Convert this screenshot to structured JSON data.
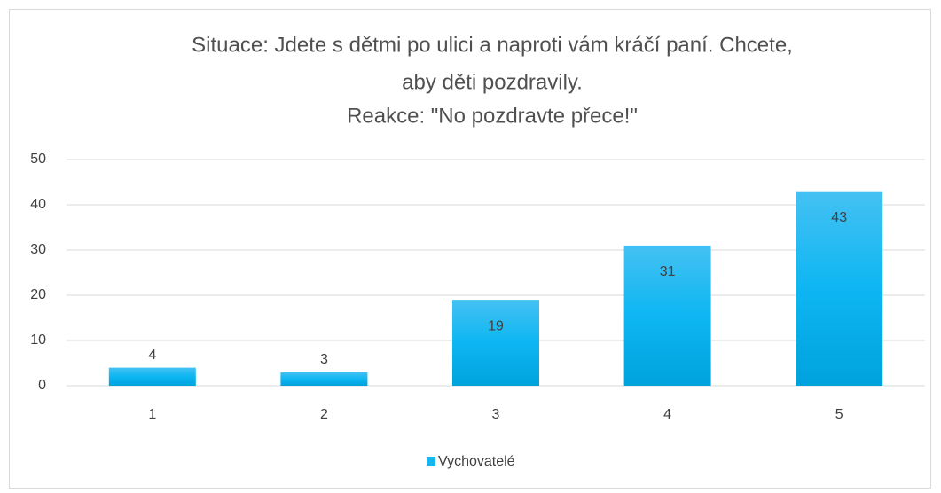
{
  "chart_data": {
    "type": "bar",
    "title": [
      "Situace: Jdete s dětmi po ulici a naproti vám kráčí paní. Chcete,",
      "aby děti pozdravily.",
      "Reakce: \"No pozdravte přece!\""
    ],
    "categories": [
      "1",
      "2",
      "3",
      "4",
      "5"
    ],
    "series": [
      {
        "name": "Vychovatelé",
        "color": "#16b4f0",
        "values": [
          4,
          3,
          19,
          31,
          43
        ]
      }
    ],
    "ylim": [
      0,
      50
    ],
    "yticks": [
      0,
      10,
      20,
      30,
      40,
      50
    ],
    "grid": true,
    "legend": "bottom"
  }
}
